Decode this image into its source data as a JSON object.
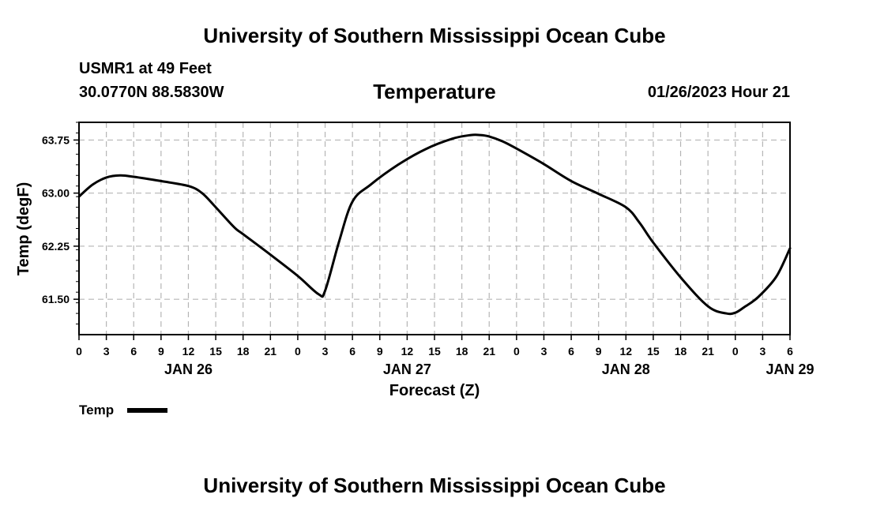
{
  "header": {
    "title_top": "University of Southern Mississippi Ocean Cube",
    "title_bottom": "University of Southern Mississippi Ocean Cube",
    "station": "USMR1 at 49 Feet",
    "location": "30.0770N  88.5830W",
    "variable": "Temperature",
    "datetime": "01/26/2023 Hour 21"
  },
  "chart_data": {
    "type": "line",
    "ylabel": "Temp (degF)",
    "xlabel": "Forecast (Z)",
    "ylim": [
      61.0,
      64.0
    ],
    "yticks": [
      61.5,
      62.25,
      63.0,
      63.75
    ],
    "ytick_labels": [
      "61.50",
      "62.25",
      "63.00",
      "63.75"
    ],
    "xlim": [
      0,
      78
    ],
    "xtick_labels": [
      "0",
      "3",
      "6",
      "9",
      "12",
      "15",
      "18",
      "21",
      "0",
      "3",
      "6",
      "9",
      "12",
      "15",
      "18",
      "21",
      "0",
      "3",
      "6",
      "9",
      "12",
      "15",
      "18",
      "21",
      "0",
      "3",
      "6"
    ],
    "day_labels": [
      {
        "text": "JAN 26",
        "hour": 12
      },
      {
        "text": "JAN 27",
        "hour": 36
      },
      {
        "text": "JAN 28",
        "hour": 60
      },
      {
        "text": "JAN 29",
        "hour": 78
      }
    ],
    "series": [
      {
        "name": "Temp",
        "x": [
          0,
          1.5,
          3,
          4.5,
          6,
          9,
          12,
          13.5,
          15,
          17,
          18,
          21,
          24,
          26.3,
          27,
          28.5,
          30,
          32,
          35,
          38,
          41,
          43,
          44,
          45,
          46.5,
          48,
          51,
          54,
          57,
          60,
          61.5,
          63,
          66,
          69,
          71,
          72,
          73,
          74.5,
          76.5,
          78
        ],
        "values": [
          62.95,
          63.12,
          63.22,
          63.25,
          63.23,
          63.17,
          63.1,
          63.0,
          62.8,
          62.52,
          62.42,
          62.13,
          61.83,
          61.57,
          61.62,
          62.3,
          62.88,
          63.12,
          63.4,
          63.62,
          63.77,
          63.82,
          63.82,
          63.8,
          63.73,
          63.63,
          63.41,
          63.17,
          62.99,
          62.8,
          62.58,
          62.3,
          61.81,
          61.4,
          61.3,
          61.31,
          61.39,
          61.53,
          61.82,
          62.22
        ]
      }
    ],
    "legend": {
      "label": "Temp",
      "position": "bottom-left"
    }
  }
}
